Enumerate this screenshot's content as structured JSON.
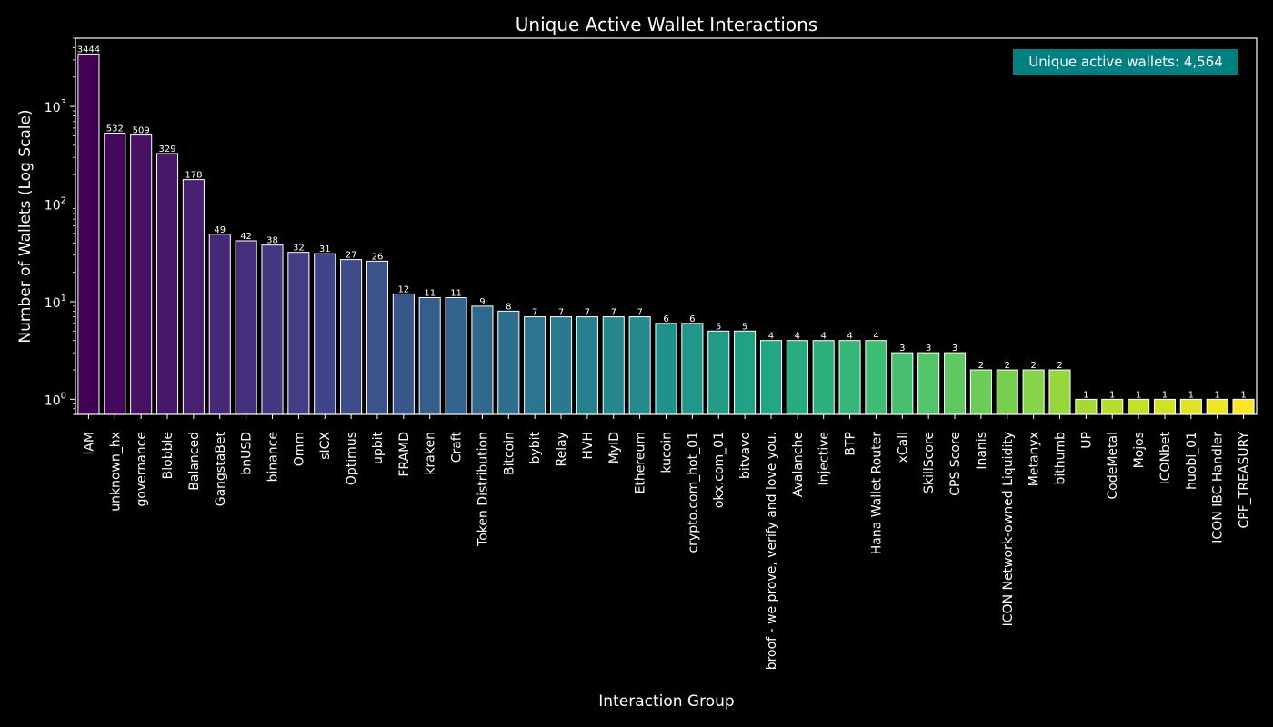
{
  "chart_data": {
    "type": "bar",
    "title": "Unique Active Wallet Interactions",
    "xlabel": "Interaction Group",
    "ylabel": "Number of Wallets (Log Scale)",
    "yscale": "log",
    "ylim": [
      0.7,
      5000
    ],
    "yticks": [
      {
        "value": 1,
        "base": "10",
        "exp": "0"
      },
      {
        "value": 10,
        "base": "10",
        "exp": "1"
      },
      {
        "value": 100,
        "base": "10",
        "exp": "2"
      },
      {
        "value": 1000,
        "base": "10",
        "exp": "3"
      }
    ],
    "grid": false,
    "colormap": "viridis",
    "annotation": "Unique active wallets: 4,564",
    "annotation_color": "#008080",
    "categories": [
      "iAM",
      "unknown_hx",
      "governance",
      "Blobble",
      "Balanced",
      "GangstaBet",
      "bnUSD",
      "binance",
      "Omm",
      "sICX",
      "Optimus",
      "upbit",
      "FRAMD",
      "kraken",
      "Craft",
      "Token Distribution",
      "Bitcoin",
      "bybit",
      "Relay",
      "HVH",
      "MyID",
      "Ethereum",
      "kucoin",
      "crypto.com_hot_01",
      "okx.com_01",
      "bitvavo",
      "broof - we prove, verify and love you.",
      "Avalanche",
      "Injective",
      "BTP",
      "Hana Wallet Router",
      "xCall",
      "SkillScore",
      "CPS Score",
      "Inanis",
      "ICON Network-owned Liquidity",
      "Metanyx",
      "bithumb",
      "UP",
      "CodeMetal",
      "Mojos",
      "ICONbet",
      "huobi_01",
      "ICON IBC Handler",
      "CPF_TREASURY"
    ],
    "values": [
      3444,
      532,
      509,
      329,
      178,
      49,
      42,
      38,
      32,
      31,
      27,
      26,
      12,
      11,
      11,
      9,
      8,
      7,
      7,
      7,
      7,
      7,
      6,
      6,
      5,
      5,
      4,
      4,
      4,
      4,
      4,
      3,
      3,
      3,
      2,
      2,
      2,
      2,
      1,
      1,
      1,
      1,
      1,
      1,
      1
    ]
  }
}
